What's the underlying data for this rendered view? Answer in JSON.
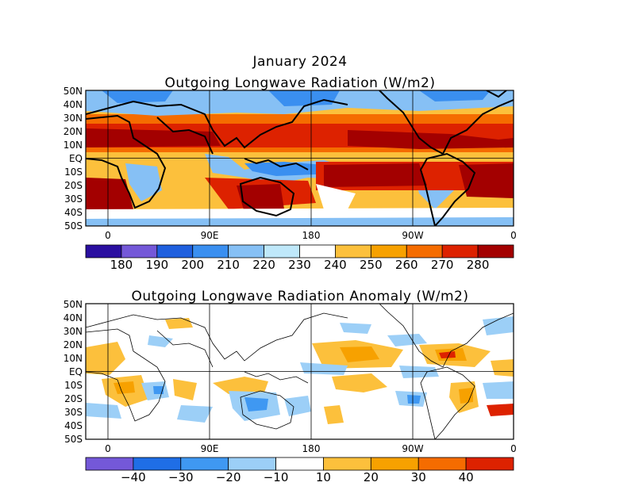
{
  "map1": {
    "title_line1": "January 2024",
    "title_line2": "Outgoing Longwave Radiation (W/m2)",
    "lat_labels": [
      "50N",
      "40N",
      "30N",
      "20N",
      "10N",
      "EQ",
      "10S",
      "20S",
      "30S",
      "40S",
      "50S"
    ],
    "lon_labels": [
      "0",
      "90E",
      "180",
      "90W",
      "0"
    ],
    "colorbar": {
      "colors": [
        "#2a0fa0",
        "#7458d8",
        "#1f5fde",
        "#3a8ff0",
        "#86c0f5",
        "#bfe8fa",
        "#ffffff",
        "#fcc03c",
        "#f7a100",
        "#f56c00",
        "#dd2200",
        "#a30000"
      ],
      "labels": [
        "180",
        "190",
        "200",
        "210",
        "220",
        "230",
        "240",
        "250",
        "260",
        "270",
        "280"
      ]
    }
  },
  "map2": {
    "title": "Outgoing Longwave Radiation Anomaly (W/m2)",
    "lat_labels": [
      "50N",
      "40N",
      "30N",
      "20N",
      "10N",
      "EQ",
      "10S",
      "20S",
      "30S",
      "40S",
      "50S"
    ],
    "lon_labels": [
      "0",
      "90E",
      "180",
      "90W",
      "0"
    ],
    "colorbar": {
      "colors": [
        "#7458d8",
        "#1f6ee6",
        "#3f98f2",
        "#9ccff7",
        "#ffffff",
        "#fcc03c",
        "#f7a100",
        "#f56c00",
        "#dd2200"
      ],
      "labels": [
        "−40",
        "−30",
        "−20",
        "−10",
        "10",
        "20",
        "30",
        "40"
      ]
    }
  }
}
